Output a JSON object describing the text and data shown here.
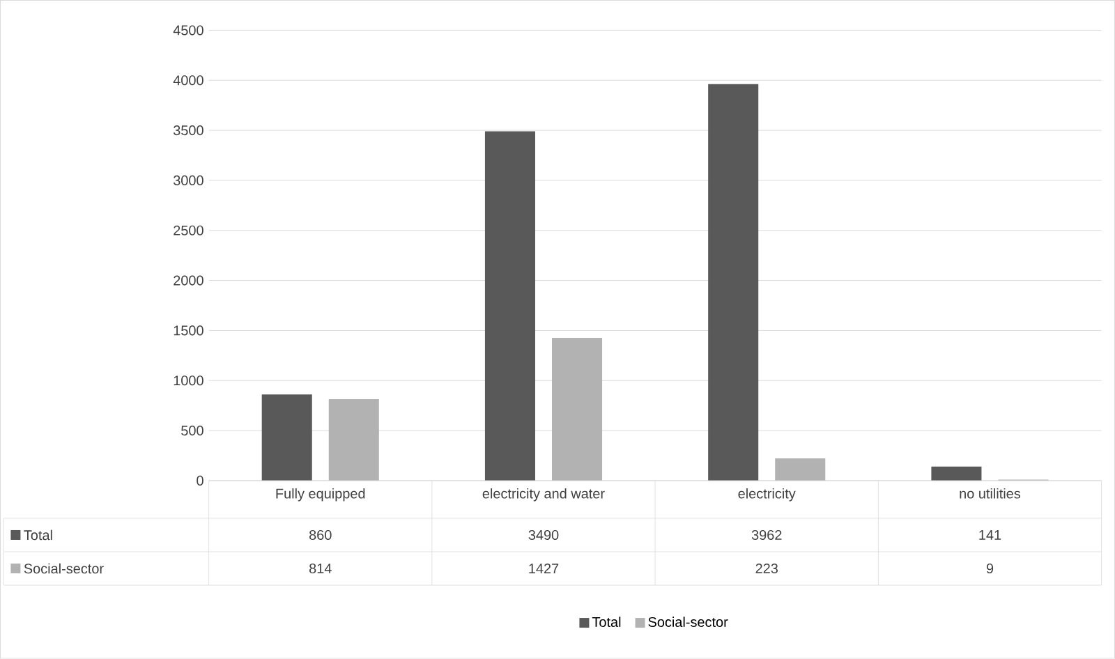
{
  "chart_data": {
    "type": "bar",
    "categories": [
      "Fully equipped",
      "electricity and water",
      "electricity",
      "no utilities"
    ],
    "series": [
      {
        "name": "Total",
        "color": "#595959",
        "values": [
          860,
          3490,
          3962,
          141
        ]
      },
      {
        "name": "Social-sector",
        "color": "#b2b2b2",
        "values": [
          814,
          1427,
          223,
          9
        ]
      }
    ],
    "ylim": [
      0,
      4500
    ],
    "yticks": [
      0,
      500,
      1000,
      1500,
      2000,
      2500,
      3000,
      3500,
      4000,
      4500
    ],
    "grid": "y",
    "legend": "bottom",
    "data_labels": true
  }
}
